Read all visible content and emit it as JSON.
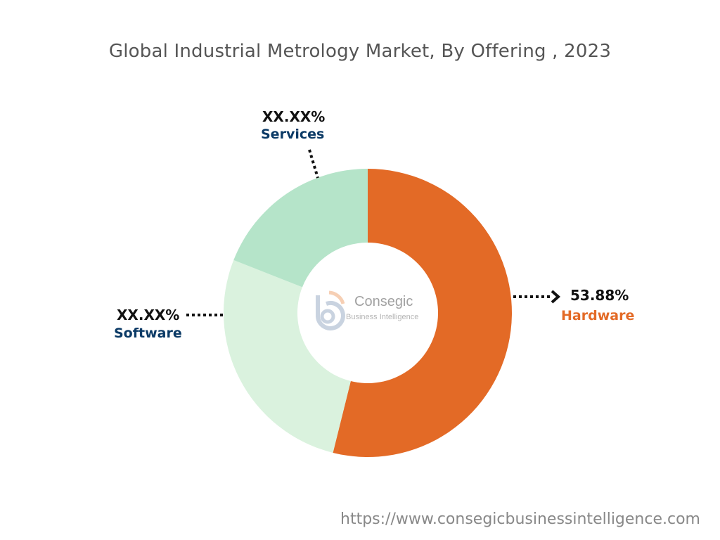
{
  "chart_data": {
    "type": "pie",
    "variant": "donut",
    "title": "Global Industrial Metrology Market, By Offering , 2023",
    "categories": [
      "Hardware",
      "Software",
      "Services"
    ],
    "values": [
      53.88,
      27.09,
      19.03
    ],
    "value_labels": [
      "53.88%",
      "XX.XX%",
      "XX.XX%"
    ],
    "colors": [
      "#E36A26",
      "#DAF2DE",
      "#B5E4C9"
    ],
    "label_colors": [
      "#E36A26",
      "#0B3A66",
      "#0B3A66"
    ]
  },
  "watermark": {
    "line1": "Consegic",
    "line2": "Business Intelligence"
  },
  "footer_url": "https://www.consegicbusinessintelligence.com"
}
